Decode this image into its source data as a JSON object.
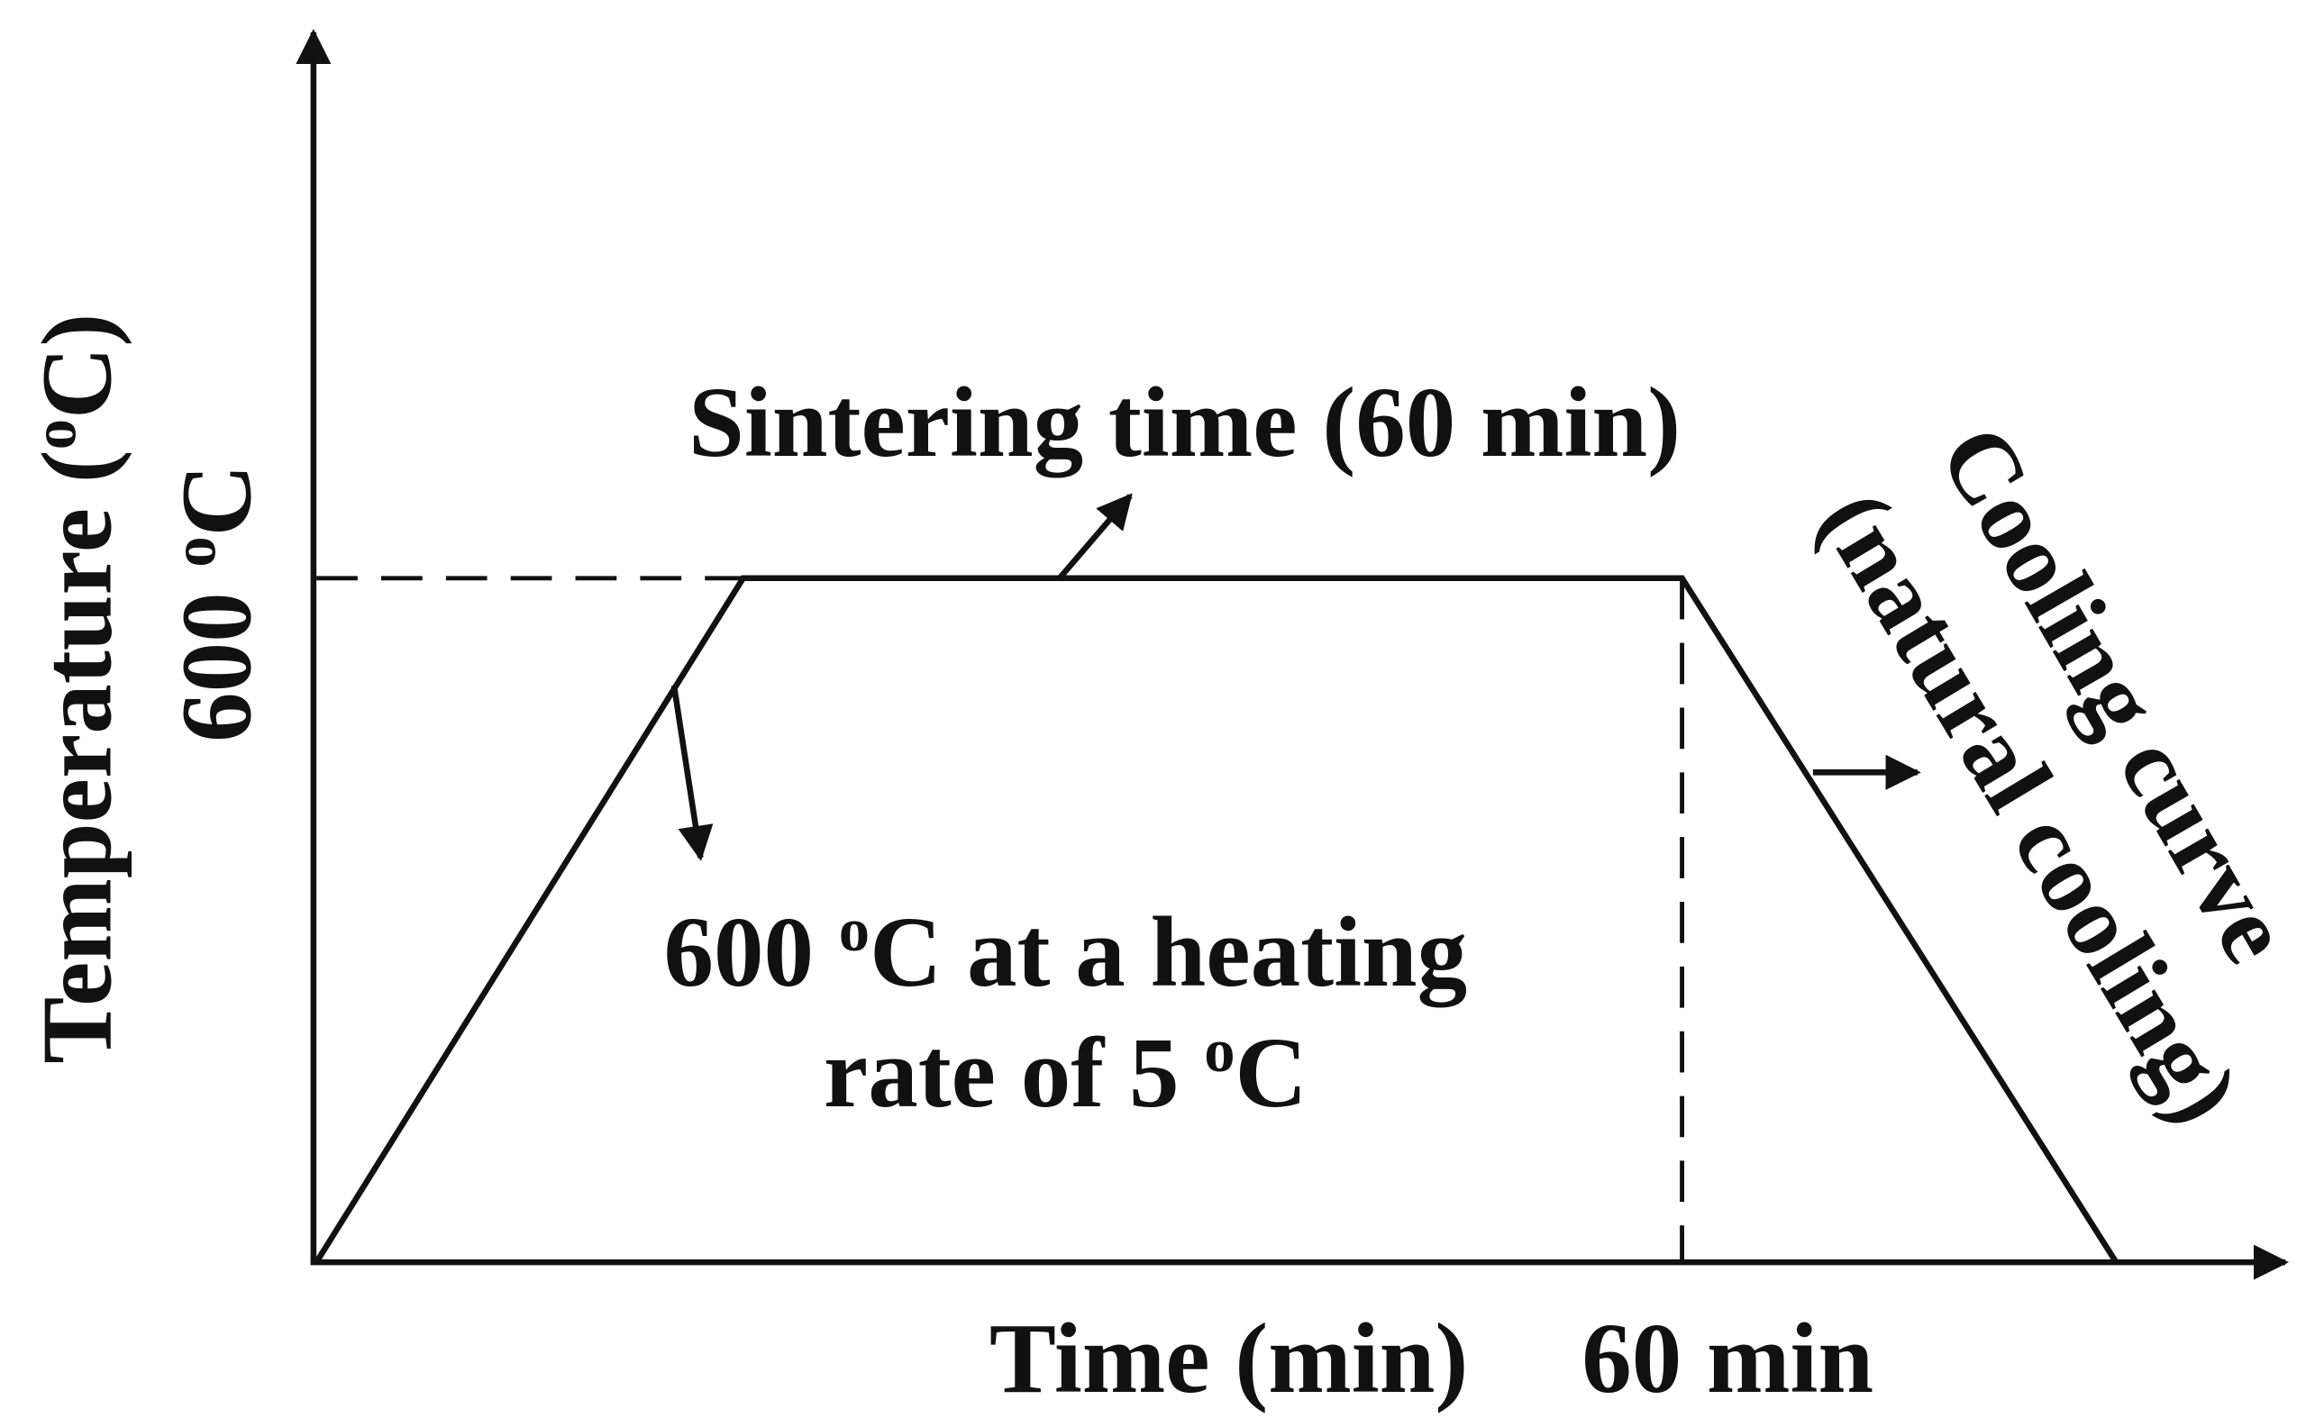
{
  "y_axis_label": [
    "Temperature (",
    "o",
    "C)"
  ],
  "peak_temperature": [
    "600 ",
    "o",
    "C"
  ],
  "sintering_label": "Sintering time (60 min)",
  "heating_label": {
    "line1": [
      "600 ",
      "o",
      "C at a heating"
    ],
    "line2": [
      "rate of 5 ",
      "o",
      "C"
    ]
  },
  "cooling_label": {
    "line1": "Cooling curve",
    "line2": "(natural cooling)"
  },
  "x_axis_label": "Time (min)",
  "end_time": "60 min"
}
